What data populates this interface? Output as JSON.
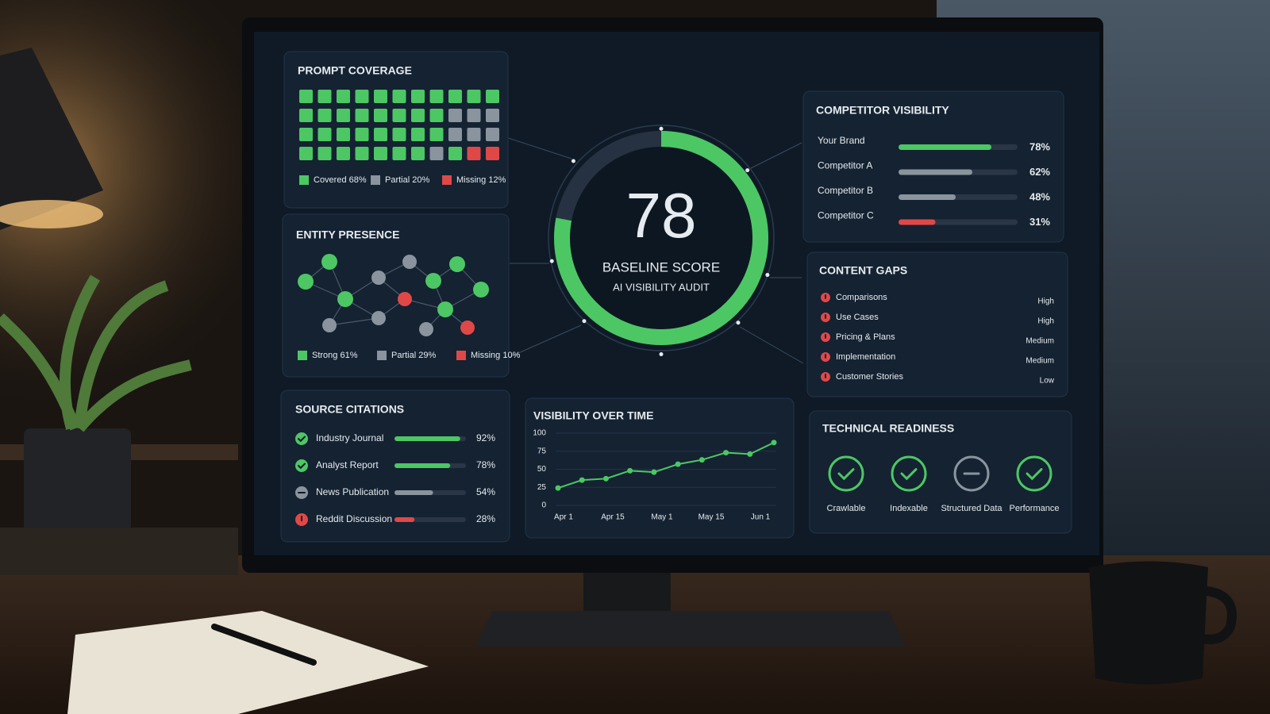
{
  "score": {
    "value": 78,
    "label": "BASELINE SCORE",
    "sublabel": "AI VISIBILITY AUDIT",
    "color": "#4cc764"
  },
  "prompt_coverage": {
    "title": "PROMPT COVERAGE",
    "legend": [
      {
        "label": "Covered 68%",
        "color": "#4cc764"
      },
      {
        "label": "Partial 20%",
        "color": "#8a949e"
      },
      {
        "label": "Missing 12%",
        "color": "#e04848"
      }
    ]
  },
  "entity_presence": {
    "title": "ENTITY PRESENCE",
    "legend": [
      {
        "label": "Strong 61%",
        "color": "#4cc764"
      },
      {
        "label": "Partial 29%",
        "color": "#8a949e"
      },
      {
        "label": "Missing 10%",
        "color": "#e04848"
      }
    ]
  },
  "source_citations": {
    "title": "SOURCE CITATIONS",
    "items": [
      {
        "name": "Industry Journal",
        "value": 92,
        "label": "92%",
        "color": "#4cc764"
      },
      {
        "name": "Analyst Report",
        "value": 78,
        "label": "78%",
        "color": "#4cc764"
      },
      {
        "name": "News Publication",
        "value": 54,
        "label": "54%",
        "color": "#8a949e"
      },
      {
        "name": "Reddit Discussion",
        "value": 28,
        "label": "28%",
        "color": "#e04848"
      }
    ]
  },
  "visibility_over_time": {
    "type": "line",
    "title": "VISIBILITY OVER TIME",
    "categories": [
      "Apr 1",
      "Apr 15",
      "May 1",
      "May 15",
      "Jun 1"
    ],
    "values": [
      24,
      35,
      37,
      48,
      46,
      57,
      63,
      73,
      71,
      87
    ],
    "ylim": [
      0,
      100
    ],
    "yticks": [
      0,
      25,
      50,
      75,
      100
    ],
    "grid": true,
    "color": "#4cc764"
  },
  "competitor_visibility": {
    "title": "COMPETITOR VISIBILITY",
    "items": [
      {
        "name": "Your Brand",
        "value": 78,
        "label": "78%",
        "color": "#4cc764"
      },
      {
        "name": "Competitor A",
        "value": 62,
        "label": "62%",
        "color": "#8a949e"
      },
      {
        "name": "Competitor B",
        "value": 48,
        "label": "48%",
        "color": "#8a949e"
      },
      {
        "name": "Competitor C",
        "value": 31,
        "label": "31%",
        "color": "#e04848"
      }
    ]
  },
  "content_gaps": {
    "title": "CONTENT GAPS",
    "items": [
      {
        "name": "Comparisons",
        "priority": "High",
        "color": "#e04848"
      },
      {
        "name": "Use Cases",
        "priority": "High",
        "color": "#e04848"
      },
      {
        "name": "Pricing & Plans",
        "priority": "Medium",
        "color": "#d9534f"
      },
      {
        "name": "Implementation",
        "priority": "Medium",
        "color": "#d9534f"
      },
      {
        "name": "Customer Stories",
        "priority": "Low",
        "color": "#9aa3ad"
      }
    ]
  },
  "technical_readiness": {
    "title": "TECHNICAL READINESS",
    "items": [
      {
        "label": "Crawlable",
        "color": "#4cc764"
      },
      {
        "label": "Indexable",
        "color": "#4cc764"
      },
      {
        "label": "Structured Data",
        "color": "#8a949e"
      },
      {
        "label": "Performance",
        "color": "#4cc764"
      }
    ]
  }
}
